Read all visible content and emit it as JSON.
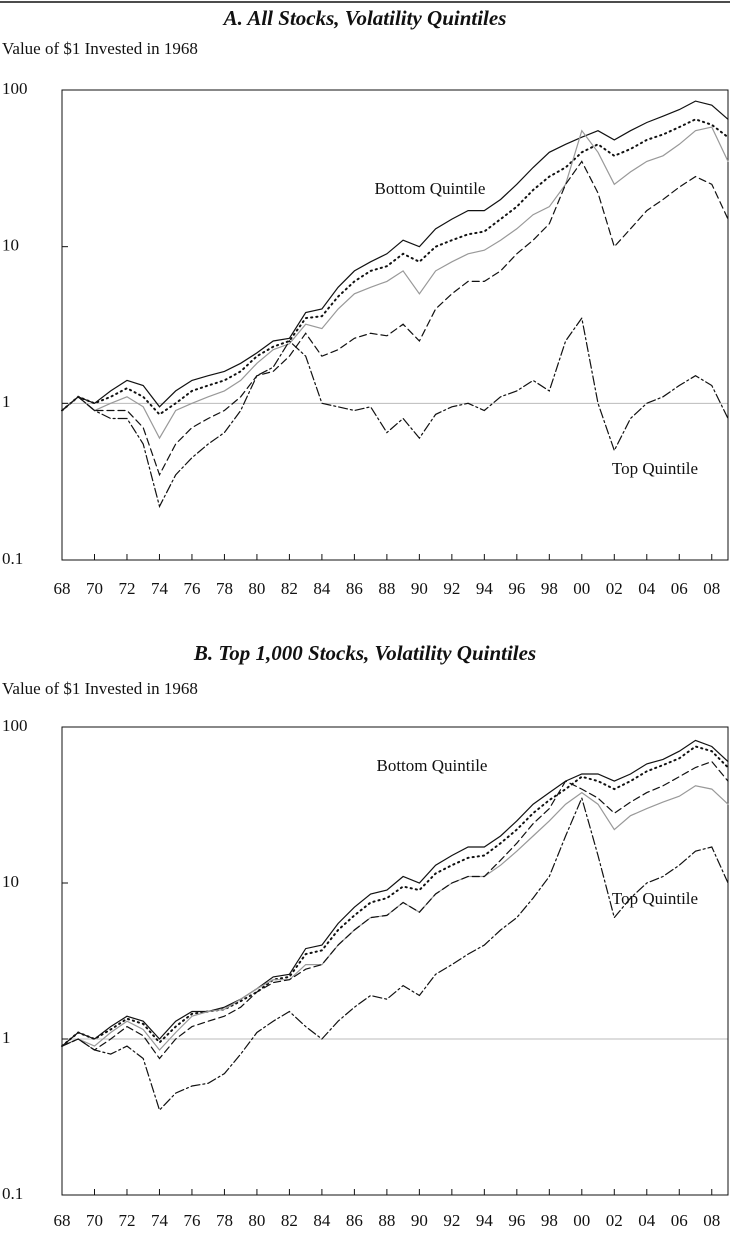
{
  "chart_data": [
    {
      "type": "line",
      "title": "A. All Stocks, Volatility Quintiles",
      "y_label": "Value of $1 Invested in 1968",
      "log_scale": true,
      "reference_line": 1,
      "xlim": [
        1968,
        2009
      ],
      "ylim": [
        0.1,
        100
      ],
      "yticks": [
        0.1,
        1,
        10,
        100
      ],
      "xticks": [
        {
          "value": 1968,
          "label": "68"
        },
        {
          "value": 1970,
          "label": "70"
        },
        {
          "value": 1972,
          "label": "72"
        },
        {
          "value": 1974,
          "label": "74"
        },
        {
          "value": 1976,
          "label": "76"
        },
        {
          "value": 1978,
          "label": "78"
        },
        {
          "value": 1980,
          "label": "80"
        },
        {
          "value": 1982,
          "label": "82"
        },
        {
          "value": 1984,
          "label": "84"
        },
        {
          "value": 1986,
          "label": "86"
        },
        {
          "value": 1988,
          "label": "88"
        },
        {
          "value": 1990,
          "label": "90"
        },
        {
          "value": 1992,
          "label": "92"
        },
        {
          "value": 1994,
          "label": "94"
        },
        {
          "value": 1996,
          "label": "96"
        },
        {
          "value": 1998,
          "label": "98"
        },
        {
          "value": 2000,
          "label": "00"
        },
        {
          "value": 2002,
          "label": "02"
        },
        {
          "value": 2004,
          "label": "04"
        },
        {
          "value": 2006,
          "label": "06"
        },
        {
          "value": 2008,
          "label": "08"
        }
      ],
      "x": [
        1968,
        1969,
        1970,
        1971,
        1972,
        1973,
        1974,
        1975,
        1976,
        1977,
        1978,
        1979,
        1980,
        1981,
        1982,
        1983,
        1984,
        1985,
        1986,
        1987,
        1988,
        1989,
        1990,
        1991,
        1992,
        1993,
        1994,
        1995,
        1996,
        1997,
        1998,
        1999,
        2000,
        2001,
        2002,
        2003,
        2004,
        2005,
        2006,
        2007,
        2008,
        2009
      ],
      "series": [
        {
          "name": "Bottom Quintile",
          "color": "#111111",
          "style": "solid",
          "values": [
            0.9,
            1.1,
            1.0,
            1.2,
            1.4,
            1.3,
            0.95,
            1.2,
            1.4,
            1.5,
            1.6,
            1.8,
            2.1,
            2.5,
            2.6,
            3.8,
            4.0,
            5.5,
            7,
            8,
            9,
            11,
            10,
            13,
            15,
            17,
            17,
            20,
            25,
            32,
            40,
            45,
            50,
            55,
            48,
            55,
            62,
            68,
            75,
            85,
            80,
            65
          ]
        },
        {
          "color": "#111111",
          "style": "dotted",
          "values": [
            0.9,
            1.1,
            1.0,
            1.1,
            1.25,
            1.1,
            0.85,
            1.0,
            1.2,
            1.3,
            1.4,
            1.6,
            2.0,
            2.3,
            2.5,
            3.5,
            3.6,
            4.8,
            6,
            7,
            7.5,
            9,
            8,
            10,
            11,
            12,
            12.5,
            15,
            18,
            23,
            28,
            32,
            40,
            45,
            38,
            42,
            48,
            52,
            58,
            65,
            60,
            50
          ]
        },
        {
          "color": "#999999",
          "style": "solid",
          "values": [
            0.9,
            1.1,
            0.9,
            1.0,
            1.1,
            0.95,
            0.6,
            0.9,
            1.0,
            1.1,
            1.2,
            1.4,
            1.8,
            2.2,
            2.4,
            3.2,
            3.0,
            4.0,
            5,
            5.5,
            6,
            7,
            5,
            7,
            8,
            9,
            9.5,
            11,
            13,
            16,
            18,
            25,
            55,
            40,
            25,
            30,
            35,
            38,
            45,
            55,
            58,
            35
          ]
        },
        {
          "color": "#111111",
          "style": "dashed",
          "values": [
            0.9,
            1.1,
            0.9,
            0.9,
            0.9,
            0.7,
            0.35,
            0.55,
            0.7,
            0.8,
            0.9,
            1.1,
            1.5,
            1.6,
            2.0,
            2.8,
            2.0,
            2.2,
            2.6,
            2.8,
            2.7,
            3.2,
            2.5,
            4,
            5,
            6,
            6,
            7,
            9,
            11,
            14,
            25,
            35,
            22,
            10,
            13,
            17,
            20,
            24,
            28,
            25,
            15
          ]
        },
        {
          "name": "Top Quintile",
          "color": "#111111",
          "style": "dashdot",
          "values": [
            0.9,
            1.1,
            0.9,
            0.8,
            0.8,
            0.55,
            0.22,
            0.35,
            0.45,
            0.55,
            0.65,
            0.9,
            1.5,
            1.7,
            2.5,
            2.0,
            1.0,
            0.95,
            0.9,
            0.95,
            0.65,
            0.8,
            0.6,
            0.85,
            0.95,
            1.0,
            0.9,
            1.1,
            1.2,
            1.4,
            1.2,
            2.5,
            3.5,
            1.0,
            0.5,
            0.8,
            1.0,
            1.1,
            1.3,
            1.5,
            1.3,
            0.8
          ]
        }
      ]
    },
    {
      "type": "line",
      "title": "B. Top 1,000 Stocks, Volatility Quintiles",
      "y_label": "Value of $1 Invested in 1968",
      "log_scale": true,
      "reference_line": 1,
      "xlim": [
        1968,
        2009
      ],
      "ylim": [
        0.1,
        100
      ],
      "yticks": [
        0.1,
        1,
        10,
        100
      ],
      "xticks": [
        {
          "value": 1968,
          "label": "68"
        },
        {
          "value": 1970,
          "label": "70"
        },
        {
          "value": 1972,
          "label": "72"
        },
        {
          "value": 1974,
          "label": "74"
        },
        {
          "value": 1976,
          "label": "76"
        },
        {
          "value": 1978,
          "label": "78"
        },
        {
          "value": 1980,
          "label": "80"
        },
        {
          "value": 1982,
          "label": "82"
        },
        {
          "value": 1984,
          "label": "84"
        },
        {
          "value": 1986,
          "label": "86"
        },
        {
          "value": 1988,
          "label": "88"
        },
        {
          "value": 1990,
          "label": "90"
        },
        {
          "value": 1992,
          "label": "92"
        },
        {
          "value": 1994,
          "label": "94"
        },
        {
          "value": 1996,
          "label": "96"
        },
        {
          "value": 1998,
          "label": "98"
        },
        {
          "value": 2000,
          "label": "00"
        },
        {
          "value": 2002,
          "label": "02"
        },
        {
          "value": 2004,
          "label": "04"
        },
        {
          "value": 2006,
          "label": "06"
        },
        {
          "value": 2008,
          "label": "08"
        }
      ],
      "x": [
        1968,
        1969,
        1970,
        1971,
        1972,
        1973,
        1974,
        1975,
        1976,
        1977,
        1978,
        1979,
        1980,
        1981,
        1982,
        1983,
        1984,
        1985,
        1986,
        1987,
        1988,
        1989,
        1990,
        1991,
        1992,
        1993,
        1994,
        1995,
        1996,
        1997,
        1998,
        1999,
        2000,
        2001,
        2002,
        2003,
        2004,
        2005,
        2006,
        2007,
        2008,
        2009
      ],
      "series": [
        {
          "name": "Bottom Quintile",
          "color": "#111111",
          "style": "solid",
          "values": [
            0.9,
            1.1,
            1.0,
            1.2,
            1.4,
            1.3,
            1.0,
            1.3,
            1.5,
            1.5,
            1.6,
            1.8,
            2.1,
            2.5,
            2.6,
            3.8,
            4,
            5.5,
            7,
            8.5,
            9,
            11,
            10,
            13,
            15,
            17,
            17,
            20,
            25,
            32,
            38,
            45,
            50,
            50,
            45,
            50,
            58,
            62,
            70,
            82,
            75,
            60
          ]
        },
        {
          "color": "#111111",
          "style": "dotted",
          "values": [
            0.9,
            1.1,
            1.0,
            1.15,
            1.35,
            1.25,
            0.95,
            1.2,
            1.45,
            1.5,
            1.55,
            1.75,
            2.0,
            2.4,
            2.5,
            3.5,
            3.7,
            5,
            6.2,
            7.5,
            8,
            9.5,
            9,
            11.5,
            13,
            14.5,
            15,
            18,
            22,
            28,
            34,
            40,
            48,
            45,
            40,
            45,
            52,
            57,
            63,
            75,
            70,
            55
          ]
        },
        {
          "color": "#999999",
          "style": "solid",
          "values": [
            0.9,
            1.0,
            0.9,
            1.1,
            1.3,
            1.15,
            0.85,
            1.1,
            1.4,
            1.5,
            1.55,
            1.8,
            2.1,
            2.4,
            2.4,
            3.0,
            3.0,
            4.0,
            5.0,
            6.0,
            6.2,
            7.5,
            6.5,
            8.5,
            10,
            11,
            11,
            13,
            16,
            20,
            25,
            32,
            38,
            32,
            22,
            27,
            30,
            33,
            36,
            42,
            40,
            32
          ]
        },
        {
          "color": "#111111",
          "style": "dashed",
          "values": [
            0.9,
            1.0,
            0.85,
            1.0,
            1.2,
            1.05,
            0.75,
            1.0,
            1.2,
            1.3,
            1.4,
            1.6,
            2.0,
            2.3,
            2.4,
            2.8,
            3.0,
            4.0,
            5.0,
            6.0,
            6.2,
            7.5,
            6.5,
            8.5,
            10,
            11,
            11,
            14,
            18,
            24,
            30,
            45,
            40,
            35,
            28,
            33,
            38,
            42,
            48,
            55,
            60,
            45
          ]
        },
        {
          "name": "Top Quintile",
          "color": "#111111",
          "style": "dashdot",
          "values": [
            0.9,
            1.0,
            0.85,
            0.8,
            0.9,
            0.75,
            0.35,
            0.45,
            0.5,
            0.52,
            0.6,
            0.8,
            1.1,
            1.3,
            1.5,
            1.2,
            1.0,
            1.3,
            1.6,
            1.9,
            1.8,
            2.2,
            1.9,
            2.6,
            3.0,
            3.5,
            4,
            5,
            6,
            8,
            11,
            20,
            35,
            15,
            6,
            8,
            10,
            11,
            13,
            16,
            17,
            10
          ]
        }
      ]
    }
  ]
}
